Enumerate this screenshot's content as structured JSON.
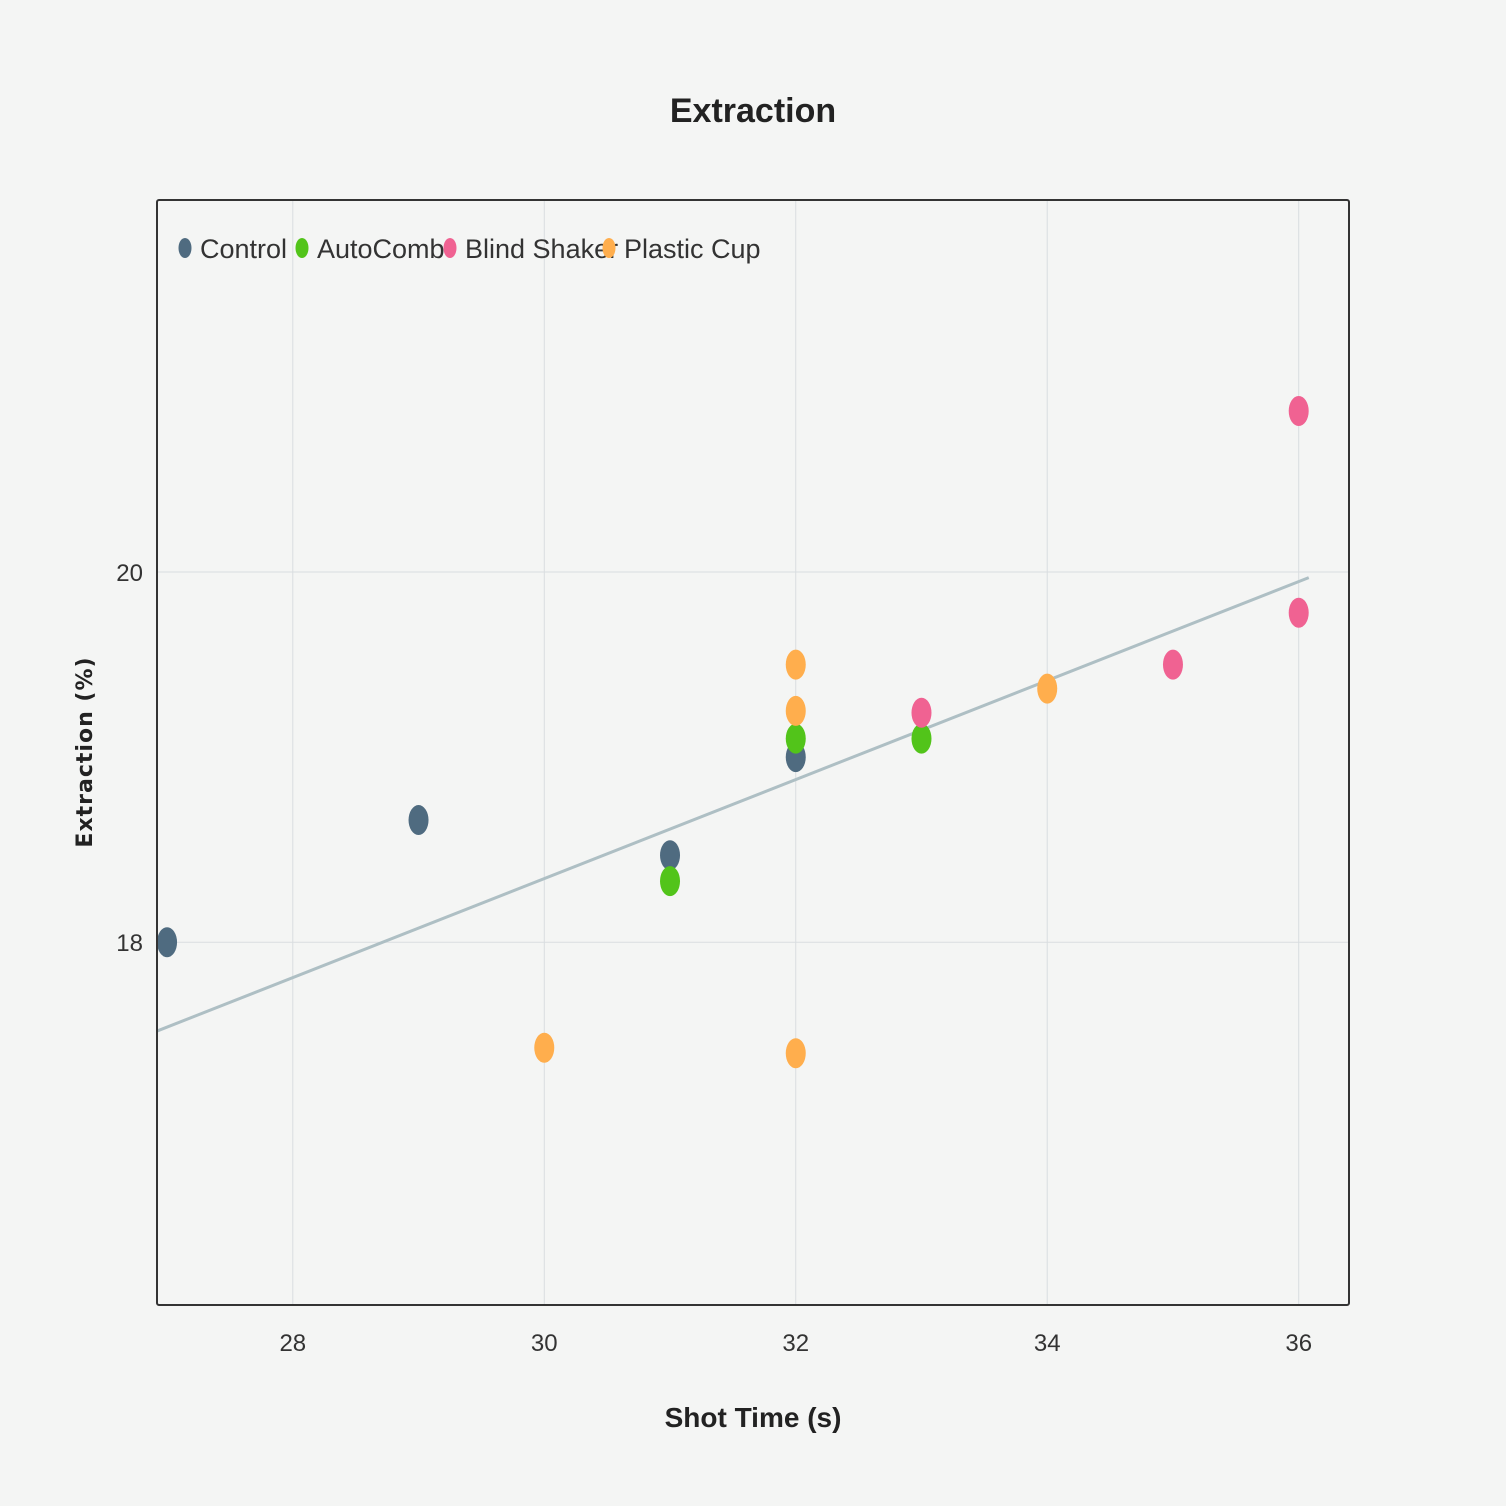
{
  "chart_data": {
    "type": "scatter",
    "title": "Extraction",
    "xlabel": "Shot Time (s)",
    "ylabel": "Extraction (%)",
    "xlim": [
      26.92,
      36.4
    ],
    "ylim": [
      16.04,
      22.01
    ],
    "x_ticks": [
      28,
      30,
      32,
      34,
      36
    ],
    "y_ticks": [
      18,
      20
    ],
    "grid": true,
    "legend_position": "top-left",
    "series": [
      {
        "name": "Control",
        "color": "#4f6b80",
        "points": [
          [
            27,
            18.0
          ],
          [
            29,
            18.66
          ],
          [
            31,
            18.47
          ],
          [
            32,
            19.0
          ]
        ]
      },
      {
        "name": "AutoComb",
        "color": "#52c41a",
        "points": [
          [
            31,
            18.33
          ],
          [
            32,
            19.1
          ],
          [
            33,
            19.1
          ]
        ]
      },
      {
        "name": "Blind Shaker",
        "color": "#f06292",
        "points": [
          [
            33,
            19.24
          ],
          [
            35,
            19.5
          ],
          [
            36,
            19.78
          ],
          [
            36,
            20.87
          ]
        ]
      },
      {
        "name": "Plastic Cup",
        "color": "#ffae4d",
        "points": [
          [
            30,
            17.43
          ],
          [
            32,
            17.4
          ],
          [
            32,
            19.25
          ],
          [
            32,
            19.5
          ],
          [
            34,
            19.37
          ]
        ]
      }
    ],
    "trendline": {
      "color": "#aebfc4",
      "x": [
        26.92,
        36.08
      ],
      "y": [
        17.52,
        19.97
      ]
    }
  }
}
